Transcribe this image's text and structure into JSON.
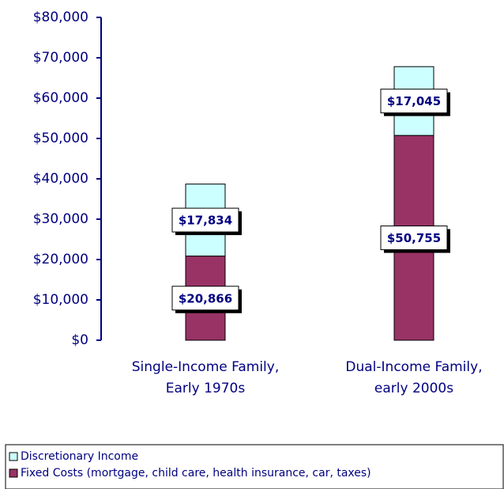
{
  "chart_data": {
    "type": "stacked_bar",
    "categories": [
      "Single-Income Family, Early 1970s",
      "Dual-Income Family, early 2000s"
    ],
    "series": [
      {
        "name": "Fixed Costs (mortgage, child care, health insurance, car, taxes)",
        "color": "#993366",
        "values": [
          20866,
          50755
        ],
        "value_labels": [
          "$20,866",
          "$50,755"
        ]
      },
      {
        "name": "Discretionary Income",
        "color": "#ccffff",
        "values": [
          17834,
          17045
        ],
        "value_labels": [
          "$17,834",
          "$17,045"
        ]
      }
    ],
    "ylim": [
      0,
      80000
    ],
    "yticks": [
      {
        "value": 0,
        "label": "$0"
      },
      {
        "value": 10000,
        "label": "$10,000"
      },
      {
        "value": 20000,
        "label": "$20,000"
      },
      {
        "value": 30000,
        "label": "$30,000"
      },
      {
        "value": 40000,
        "label": "$40,000"
      },
      {
        "value": 50000,
        "label": "$50,000"
      },
      {
        "value": 60000,
        "label": "$60,000"
      },
      {
        "value": 70000,
        "label": "$70,000"
      },
      {
        "value": 80000,
        "label": "$80,000"
      }
    ],
    "legend": "bottom"
  }
}
